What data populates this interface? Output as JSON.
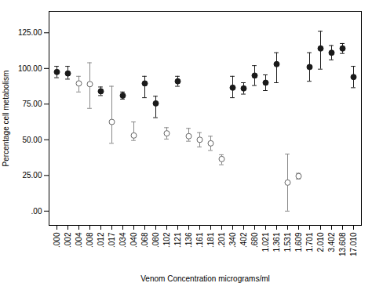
{
  "chart_data": {
    "type": "scatter",
    "xlabel": "Venom Concentration micrograms/ml",
    "ylabel": "Percentage cell metabolism",
    "categories": [
      ".000",
      ".002",
      ".004",
      ".008",
      ".012",
      ".017",
      ".034",
      ".040",
      ".068",
      ".080",
      ".102",
      ".121",
      ".136",
      ".161",
      ".181",
      ".201",
      ".340",
      ".402",
      ".680",
      "1.021",
      "1.361",
      "1.531",
      "1.609",
      "1.701",
      "2.010",
      "3.402",
      "13.608",
      "17.010"
    ],
    "values": [
      97.5,
      96.5,
      89.5,
      89.0,
      84.0,
      62.5,
      81.0,
      53.0,
      89.5,
      75.5,
      54.5,
      91.0,
      52.5,
      50.0,
      47.5,
      36.5,
      86.5,
      86.0,
      95.0,
      90.0,
      103.0,
      20.0,
      24.5,
      101.0,
      114.0,
      111.0,
      114.0,
      94.0
    ],
    "y_err_low": [
      4.0,
      4.0,
      6.0,
      17.0,
      3.0,
      15.0,
      2.5,
      3.5,
      10.0,
      10.0,
      4.0,
      3.5,
      3.5,
      5.0,
      5.0,
      4.0,
      7.0,
      4.0,
      7.0,
      5.5,
      13.0,
      20.0,
      2.0,
      10.0,
      14.5,
      5.0,
      3.5,
      7.5
    ],
    "y_err_high": [
      4.0,
      5.0,
      5.0,
      15.0,
      3.0,
      25.0,
      2.5,
      9.5,
      5.0,
      5.0,
      4.0,
      3.5,
      5.5,
      5.0,
      5.0,
      3.0,
      8.0,
      4.0,
      7.0,
      5.5,
      8.0,
      20.0,
      2.0,
      10.0,
      12.0,
      5.0,
      3.5,
      7.5
    ],
    "colors": [
      "#1a1a1a",
      "#1a1a1a",
      "#ffffff",
      "#ffffff",
      "#1a1a1a",
      "#ffffff",
      "#1a1a1a",
      "#ffffff",
      "#1a1a1a",
      "#1a1a1a",
      "#ffffff",
      "#1a1a1a",
      "#ffffff",
      "#ffffff",
      "#ffffff",
      "#ffffff",
      "#1a1a1a",
      "#1a1a1a",
      "#1a1a1a",
      "#1a1a1a",
      "#1a1a1a",
      "#ffffff",
      "#ffffff",
      "#1a1a1a",
      "#1a1a1a",
      "#1a1a1a",
      "#1a1a1a",
      "#1a1a1a"
    ],
    "marker": "circle",
    "ylim": [
      -10,
      140
    ],
    "yticks": [
      {
        "value": 0,
        "label": ".00"
      },
      {
        "value": 25,
        "label": "25.00"
      },
      {
        "value": 50,
        "label": "50.00"
      },
      {
        "value": 75,
        "label": "75.00"
      },
      {
        "value": 100,
        "label": "100.00"
      },
      {
        "value": 125,
        "label": "125.00"
      }
    ],
    "grid": false
  }
}
